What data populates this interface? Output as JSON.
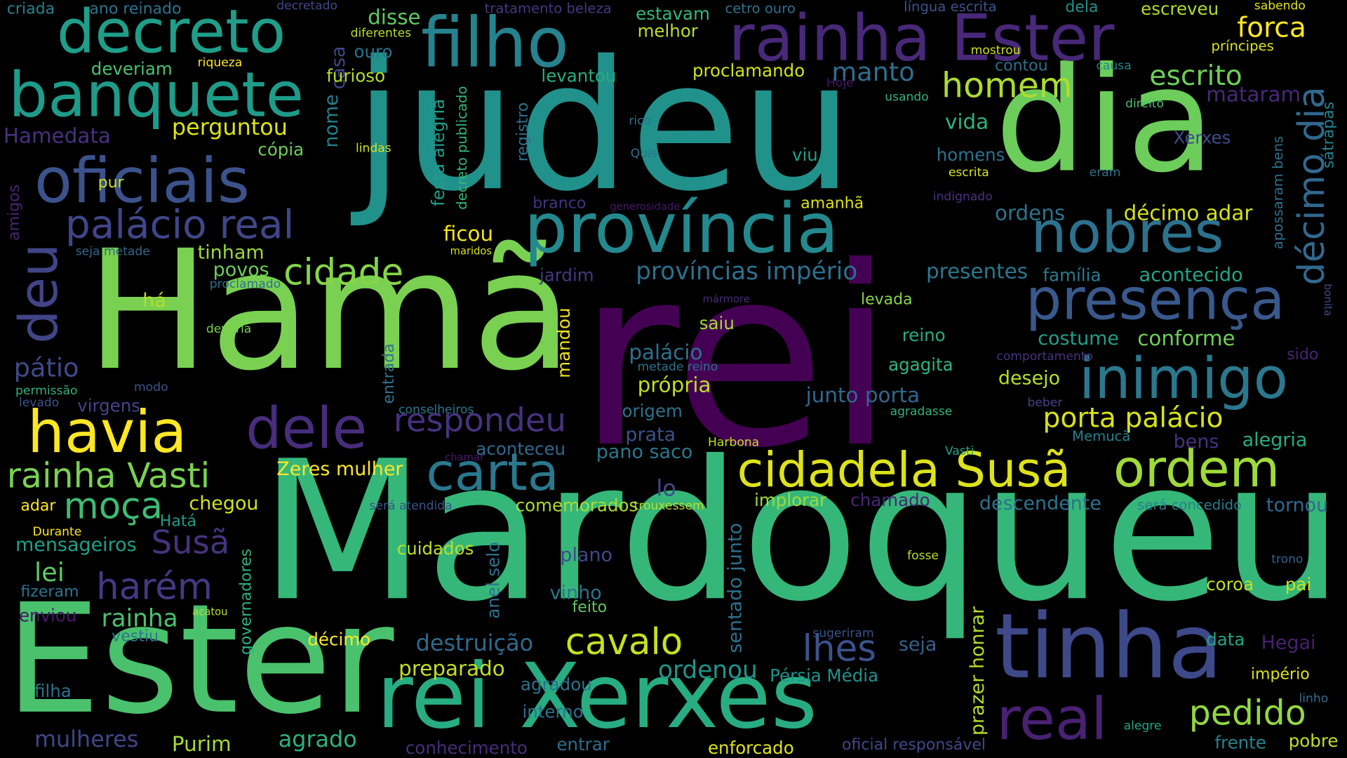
{
  "words": [
    {
      "text": "rei",
      "color": "#440154"
    },
    {
      "text": "Mardoqueu",
      "color": "#35b779"
    },
    {
      "text": "Hamã",
      "color": "#7ad151"
    },
    {
      "text": "judeu",
      "color": "#21918c"
    },
    {
      "text": "Ester",
      "color": "#4ac16d"
    },
    {
      "text": "dia",
      "color": "#6ccd5a"
    },
    {
      "text": "rei Xerxes",
      "color": "#27ad81"
    },
    {
      "text": "tinha",
      "color": "#3e4989"
    },
    {
      "text": "província",
      "color": "#23898e"
    },
    {
      "text": "filho",
      "color": "#26828e"
    },
    {
      "text": "rainha Ester",
      "color": "#482878"
    },
    {
      "text": "decreto",
      "color": "#1f9e89"
    },
    {
      "text": "banquete",
      "color": "#1e9c89"
    },
    {
      "text": "oficiais",
      "color": "#3b528b"
    },
    {
      "text": "nobres",
      "color": "#2c728e"
    },
    {
      "text": "presença",
      "color": "#38598c"
    },
    {
      "text": "inimigo",
      "color": "#2a788e"
    },
    {
      "text": "havia",
      "color": "#fde725"
    },
    {
      "text": "dele",
      "color": "#472d7b"
    },
    {
      "text": "carta",
      "color": "#2a788e"
    },
    {
      "text": "cidadela Susã",
      "color": "#dde318"
    },
    {
      "text": "ordem",
      "color": "#a0da39"
    },
    {
      "text": "real",
      "color": "#482173"
    },
    {
      "text": "décimo dia",
      "color": "#31688e"
    },
    {
      "text": "palácio real",
      "color": "#404688"
    },
    {
      "text": "deu",
      "color": "#414487"
    },
    {
      "text": "homem",
      "color": "#addc30"
    },
    {
      "text": "cidade",
      "color": "#86d549"
    },
    {
      "text": "respondeu",
      "color": "#46327e"
    },
    {
      "text": "rainha Vasti",
      "color": "#7ad151"
    },
    {
      "text": "moça",
      "color": "#3dbc74"
    },
    {
      "text": "harém",
      "color": "#443983"
    },
    {
      "text": "Susã",
      "color": "#46337f"
    },
    {
      "text": "cavalo",
      "color": "#c8e020"
    },
    {
      "text": "lhes",
      "color": "#3b528b"
    },
    {
      "text": "pedido",
      "color": "#93d741"
    },
    {
      "text": "porta palácio",
      "color": "#d8e219"
    },
    {
      "text": "províncias império",
      "color": "#2d708e"
    },
    {
      "text": "presentes",
      "color": "#2a788e"
    },
    {
      "text": "acontecido",
      "color": "#21a685"
    },
    {
      "text": "escrito",
      "color": "#6ece58"
    },
    {
      "text": "forca",
      "color": "#fde725"
    },
    {
      "text": "manto",
      "color": "#2e6e8e"
    },
    {
      "text": "perguntou",
      "color": "#dde318"
    },
    {
      "text": "Hamedata",
      "color": "#46327e"
    },
    {
      "text": "pátio",
      "color": "#3e4a89"
    },
    {
      "text": "lei",
      "color": "#5ec962"
    },
    {
      "text": "rainha",
      "color": "#4ac16d"
    },
    {
      "text": "destruição",
      "color": "#306a8e"
    },
    {
      "text": "ordenou",
      "color": "#1f958b"
    },
    {
      "text": "preparado",
      "color": "#c2df23"
    },
    {
      "text": "mulheres",
      "color": "#3f4788"
    },
    {
      "text": "agrado",
      "color": "#2db27d"
    },
    {
      "text": "Purim",
      "color": "#a5db36"
    },
    {
      "text": "mensageiros",
      "color": "#1fa088"
    },
    {
      "text": "chegou",
      "color": "#d2e21b"
    },
    {
      "text": "adar",
      "color": "#fde725"
    },
    {
      "text": "Hatá",
      "color": "#1f9a8a"
    },
    {
      "text": "povos",
      "color": "#6ccd5a"
    },
    {
      "text": "tinham",
      "color": "#9bd93c"
    },
    {
      "text": "há",
      "color": "#b5de2b"
    },
    {
      "text": "ficou",
      "color": "#f1e51d"
    },
    {
      "text": "pur",
      "color": "#c8e020"
    },
    {
      "text": "cópia",
      "color": "#6ece58"
    },
    {
      "text": "nome",
      "color": "#27808e"
    },
    {
      "text": "casa",
      "color": "#3f4889"
    },
    {
      "text": "furioso",
      "color": "#b5de2b"
    },
    {
      "text": "ouro",
      "color": "#2c738e"
    },
    {
      "text": "disse",
      "color": "#5ec962"
    },
    {
      "text": "deveriam",
      "color": "#4ac16d"
    },
    {
      "text": "amigos",
      "color": "#482475"
    },
    {
      "text": "criada",
      "color": "#26818e"
    },
    {
      "text": "ano reinado",
      "color": "#2c738e"
    },
    {
      "text": "festa alegria",
      "color": "#1f9e89"
    },
    {
      "text": "decreto publicado",
      "color": "#35b779"
    },
    {
      "text": "registro",
      "color": "#2d708e"
    },
    {
      "text": "levantou",
      "color": "#26ad81"
    },
    {
      "text": "estavam",
      "color": "#35b779"
    },
    {
      "text": "melhor",
      "color": "#b8de29"
    },
    {
      "text": "tratamento beleza",
      "color": "#443983"
    },
    {
      "text": "proclamando",
      "color": "#d0e11c"
    },
    {
      "text": "contou",
      "color": "#2e6f8e"
    },
    {
      "text": "mataram",
      "color": "#482878"
    },
    {
      "text": "vida",
      "color": "#2fb47c"
    },
    {
      "text": "homens",
      "color": "#2c728e"
    },
    {
      "text": "Xerxes",
      "color": "#3e4c8a"
    },
    {
      "text": "escreveu",
      "color": "#b0dd2f"
    },
    {
      "text": "dela",
      "color": "#21918c"
    },
    {
      "text": "ordens",
      "color": "#2c738e"
    },
    {
      "text": "décimo adar",
      "color": "#d5e21a"
    },
    {
      "text": "família",
      "color": "#287c8e"
    },
    {
      "text": "costume",
      "color": "#1f9f88"
    },
    {
      "text": "conforme",
      "color": "#6ece58"
    },
    {
      "text": "desejo",
      "color": "#b5de2b"
    },
    {
      "text": "junto porta",
      "color": "#31688e"
    },
    {
      "text": "agagita",
      "color": "#2fb47c"
    },
    {
      "text": "reino",
      "color": "#26ad81"
    },
    {
      "text": "palácio",
      "color": "#2d718e"
    },
    {
      "text": "própria",
      "color": "#bddf26"
    },
    {
      "text": "origem",
      "color": "#2c728e"
    },
    {
      "text": "prata",
      "color": "#3b528b"
    },
    {
      "text": "pano saco",
      "color": "#2a788e"
    },
    {
      "text": "aconteceu",
      "color": "#31688e"
    },
    {
      "text": "lo",
      "color": "#3e4c8a"
    },
    {
      "text": "saiu",
      "color": "#a5db36"
    },
    {
      "text": "levada",
      "color": "#86d549"
    },
    {
      "text": "jardim",
      "color": "#443983"
    },
    {
      "text": "mandou",
      "color": "#f1e51d"
    },
    {
      "text": "entrada",
      "color": "#2c738e"
    },
    {
      "text": "Zeres mulher",
      "color": "#fde725"
    },
    {
      "text": "viu",
      "color": "#1fa088"
    },
    {
      "text": "amanhã",
      "color": "#dde318"
    },
    {
      "text": "branco",
      "color": "#46337f"
    },
    {
      "text": "mármore",
      "color": "#472c7a"
    },
    {
      "text": "generosidade",
      "color": "#48186a"
    },
    {
      "text": "Memucã",
      "color": "#26818e"
    },
    {
      "text": "bens",
      "color": "#46327e"
    },
    {
      "text": "alegria",
      "color": "#27ad81"
    },
    {
      "text": "descendente",
      "color": "#2c738e"
    },
    {
      "text": "tornou",
      "color": "#31688e"
    },
    {
      "text": "será concedido",
      "color": "#277f8e"
    },
    {
      "text": "coroa",
      "color": "#c2df23"
    },
    {
      "text": "pai",
      "color": "#cae11f"
    },
    {
      "text": "data",
      "color": "#21a685"
    },
    {
      "text": "Hegai",
      "color": "#482071"
    },
    {
      "text": "império",
      "color": "#dde318"
    },
    {
      "text": "frente",
      "color": "#26828e"
    },
    {
      "text": "pobre",
      "color": "#c2df23"
    },
    {
      "text": "implorar",
      "color": "#a0da39"
    },
    {
      "text": "chamado",
      "color": "#482777"
    },
    {
      "text": "comemorados",
      "color": "#aadc32"
    },
    {
      "text": "plano",
      "color": "#3e4a89"
    },
    {
      "text": "vinho",
      "color": "#2c738e"
    },
    {
      "text": "feito",
      "color": "#5ec962"
    },
    {
      "text": "cuidados",
      "color": "#bddf26"
    },
    {
      "text": "anel selo",
      "color": "#2c728e"
    },
    {
      "text": "sentado junto",
      "color": "#2c728e"
    },
    {
      "text": "prazer honrar",
      "color": "#b5de2b"
    },
    {
      "text": "Pérsia Média",
      "color": "#20928c"
    },
    {
      "text": "seja",
      "color": "#35608d"
    },
    {
      "text": "interno",
      "color": "#2d708e"
    },
    {
      "text": "agradou",
      "color": "#2c728e"
    },
    {
      "text": "entrar",
      "color": "#2e6e8e"
    },
    {
      "text": "enforcado",
      "color": "#dde318"
    },
    {
      "text": "conhecimento",
      "color": "#472d7b"
    },
    {
      "text": "oficial responsável",
      "color": "#3e4989"
    },
    {
      "text": "filha",
      "color": "#2d718e"
    },
    {
      "text": "enviou",
      "color": "#48186a"
    },
    {
      "text": "fizeram",
      "color": "#2c738e"
    },
    {
      "text": "vestiu",
      "color": "#2a778e"
    },
    {
      "text": "décimo",
      "color": "#fde725"
    },
    {
      "text": "governadores",
      "color": "#2db27d"
    },
    {
      "text": "acatou",
      "color": "#b5de2b"
    },
    {
      "text": "virgens",
      "color": "#404588"
    },
    {
      "text": "sátrapas",
      "color": "#26828e"
    },
    {
      "text": "apossaram bens",
      "color": "#2c728e"
    },
    {
      "text": "príncipes",
      "color": "#dde318"
    },
    {
      "text": "sabendo",
      "color": "#e2e418"
    },
    {
      "text": "trono",
      "color": "#34608d"
    },
    {
      "text": "linho",
      "color": "#2e6e8e"
    },
    {
      "text": "alegre",
      "color": "#22a785"
    },
    {
      "text": "bonita",
      "color": "#3e4c8a"
    },
    {
      "text": "sido",
      "color": "#482576"
    },
    {
      "text": "Vasti",
      "color": "#21a685"
    },
    {
      "text": "fosse",
      "color": "#b5de2b"
    },
    {
      "text": "sugeriram",
      "color": "#3b528b"
    },
    {
      "text": "agradasse",
      "color": "#2fb47c"
    },
    {
      "text": "beber",
      "color": "#404588"
    },
    {
      "text": "comportamento",
      "color": "#46337f"
    },
    {
      "text": "será atendida",
      "color": "#3b528b"
    },
    {
      "text": "trouxessem",
      "color": "#b8de29"
    },
    {
      "text": "Harbona",
      "color": "#c2df23"
    },
    {
      "text": "chamar",
      "color": "#48186a"
    },
    {
      "text": "Durante",
      "color": "#fde725"
    },
    {
      "text": "conselheiros",
      "color": "#2a788e"
    },
    {
      "text": "metade reino",
      "color": "#2c728e"
    },
    {
      "text": "proclamado",
      "color": "#2d718e"
    },
    {
      "text": "deveria",
      "color": "#7ad151"
    },
    {
      "text": "modo",
      "color": "#3b528b"
    },
    {
      "text": "permissão",
      "color": "#2db27d"
    },
    {
      "text": "levado",
      "color": "#3b528b"
    },
    {
      "text": "seja metade",
      "color": "#31688e"
    },
    {
      "text": "maridos",
      "color": "#d8e219"
    },
    {
      "text": "lindas",
      "color": "#d5e21a"
    },
    {
      "text": "riqueza",
      "color": "#fde725"
    },
    {
      "text": "diferentes",
      "color": "#b5de2b"
    },
    {
      "text": "decretado",
      "color": "#3e4a89"
    },
    {
      "text": "rico",
      "color": "#2d708e"
    },
    {
      "text": "Quis",
      "color": "#2e6f8e"
    },
    {
      "text": "Hoje",
      "color": "#48186a"
    },
    {
      "text": "usando",
      "color": "#2fb47c"
    },
    {
      "text": "mostrou",
      "color": "#d0e11c"
    },
    {
      "text": "língua escrita",
      "color": "#3a548c"
    },
    {
      "text": "cetro ouro",
      "color": "#2c728e"
    },
    {
      "text": "causa",
      "color": "#26828e"
    },
    {
      "text": "direito",
      "color": "#4ac16d"
    },
    {
      "text": "eram",
      "color": "#2c738e"
    },
    {
      "text": "escrita",
      "color": "#d8e219"
    },
    {
      "text": "indignado",
      "color": "#46337f"
    }
  ]
}
